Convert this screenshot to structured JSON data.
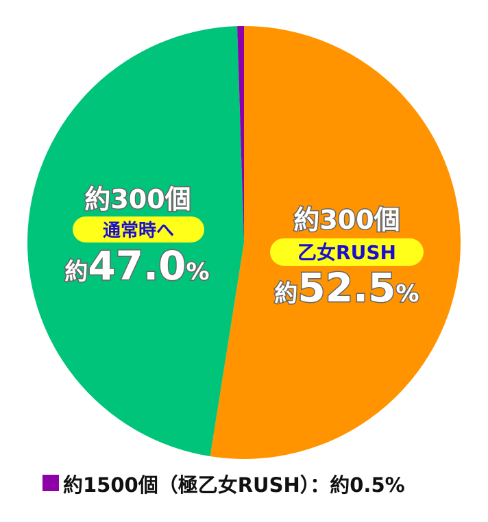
{
  "chart_data": {
    "type": "pie",
    "start_angle_deg": 0,
    "direction": "clockwise",
    "slices": [
      {
        "key": "otome_rush",
        "value": 52.5,
        "color": "#ff9400",
        "count_label": "約300個",
        "name": "乙女RUSH",
        "pct_prefix": "約",
        "pct_value": "52.5",
        "pct_suffix": "%"
      },
      {
        "key": "normal",
        "value": 47.0,
        "color": "#00c47a",
        "count_label": "約300個",
        "name": "通常時へ",
        "pct_prefix": "約",
        "pct_value": "47.0",
        "pct_suffix": "%"
      },
      {
        "key": "goku_otome_rush",
        "value": 0.5,
        "color": "#8e00a8"
      }
    ],
    "legend": {
      "color": "#8e00a8",
      "text": "約1500個（極乙女RUSH）：約0.5%"
    },
    "pill_color": "#ffff1a"
  }
}
